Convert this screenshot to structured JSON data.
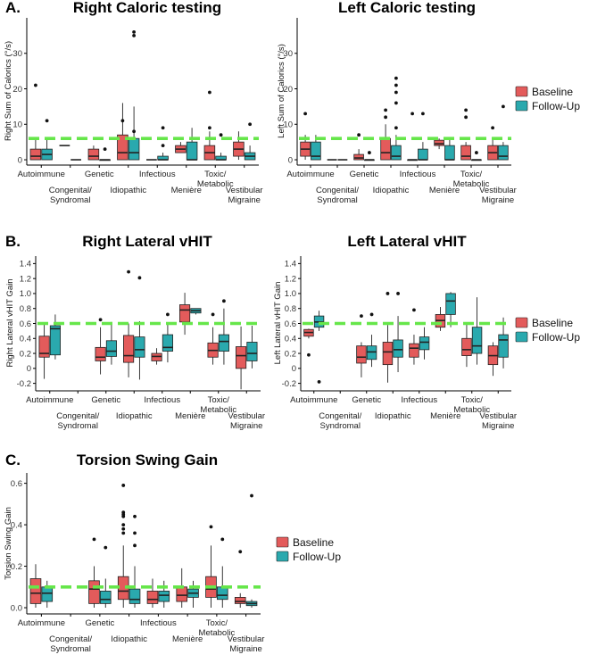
{
  "colors": {
    "baseline": "#e35b5b",
    "followup": "#2aa9ae",
    "reference": "#66e64a",
    "axis": "#000000",
    "whisker": "#222222"
  },
  "legend": {
    "baseline": "Baseline",
    "followup": "Follow-Up"
  },
  "categories": [
    "Autoimmune",
    "Congenital/\nSyndromal",
    "Genetic",
    "Idiopathic",
    "Infectious",
    "Menière",
    "Toxic/\nMetabolic",
    "Vestibular\nMigraine"
  ],
  "panels": [
    {
      "letter": "A.",
      "title": "Right Caloric testing"
    },
    {
      "letter": "",
      "title": "Left Caloric testing"
    },
    {
      "letter": "B.",
      "title": "Right Lateral vHIT"
    },
    {
      "letter": "",
      "title": "Left Lateral vHIT"
    },
    {
      "letter": "C.",
      "title": "Torsion Swing Gain"
    }
  ],
  "chart_data": [
    {
      "type": "box",
      "title": "Right Caloric testing",
      "ylabel": "Right Sum of Calorics (°/s)",
      "ylim": [
        -1.5,
        40
      ],
      "yticks": [
        0,
        10,
        20,
        30
      ],
      "reference_line": 6,
      "series": [
        {
          "name": "Baseline",
          "boxes": [
            {
              "q1": 0,
              "med": 1,
              "q3": 3,
              "lo": 0,
              "hi": 6,
              "out": [
                21
              ]
            },
            {
              "med": 4
            },
            {
              "q1": 0,
              "med": 1,
              "q3": 3,
              "lo": 0,
              "hi": 4
            },
            {
              "q1": 0,
              "med": 2,
              "q3": 7,
              "lo": 0,
              "hi": 16,
              "out": [
                11
              ]
            },
            {
              "med": 0
            },
            {
              "q1": 2,
              "med": 3,
              "q3": 4,
              "lo": 2,
              "hi": 5
            },
            {
              "q1": 0,
              "med": 2,
              "q3": 4,
              "lo": 0,
              "hi": 8,
              "out": [
                19,
                9
              ]
            },
            {
              "q1": 1,
              "med": 3,
              "q3": 5,
              "lo": 0,
              "hi": 8
            }
          ]
        },
        {
          "name": "Follow-Up",
          "boxes": [
            {
              "q1": 0,
              "med": 1.5,
              "q3": 3,
              "lo": 0,
              "hi": 6,
              "out": [
                11
              ]
            },
            {
              "med": 0
            },
            {
              "q1": 0,
              "med": 0,
              "q3": 0,
              "lo": 0,
              "hi": 0,
              "out": [
                3
              ]
            },
            {
              "q1": 0,
              "med": 2,
              "q3": 6,
              "lo": 0,
              "hi": 15,
              "out": [
                36,
                35,
                8
              ]
            },
            {
              "q1": 0,
              "med": 0,
              "q3": 1,
              "lo": 0,
              "hi": 2,
              "out": [
                4,
                9
              ]
            },
            {
              "q1": 0,
              "med": 0,
              "q3": 5,
              "lo": 0,
              "hi": 9
            },
            {
              "q1": 0,
              "med": 0,
              "q3": 1,
              "lo": 0,
              "hi": 2,
              "out": [
                7
              ]
            },
            {
              "q1": 0,
              "med": 1,
              "q3": 2,
              "lo": 0,
              "hi": 4,
              "out": [
                10
              ]
            }
          ]
        }
      ]
    },
    {
      "type": "box",
      "title": "Left Caloric testing",
      "ylabel": "Left Sum of Calorics (°/s)",
      "ylim": [
        -1.5,
        40
      ],
      "yticks": [
        0,
        10,
        20,
        30
      ],
      "reference_line": 6,
      "series": [
        {
          "name": "Baseline",
          "boxes": [
            {
              "q1": 1,
              "med": 3,
              "q3": 5,
              "lo": 0,
              "hi": 7,
              "out": [
                13
              ]
            },
            {
              "med": 0
            },
            {
              "q1": 0,
              "med": 0.5,
              "q3": 1.5,
              "lo": 0,
              "hi": 3,
              "out": [
                7
              ]
            },
            {
              "q1": 0,
              "med": 2,
              "q3": 6,
              "lo": 0,
              "hi": 10,
              "out": [
                14,
                12
              ]
            },
            {
              "q1": 0,
              "med": 0,
              "q3": 0,
              "lo": 0,
              "hi": 0,
              "out": [
                13
              ]
            },
            {
              "q1": 4,
              "med": 4.5,
              "q3": 5.5,
              "lo": 3,
              "hi": 6
            },
            {
              "q1": 0,
              "med": 1,
              "q3": 4,
              "lo": 0,
              "hi": 5,
              "out": [
                14,
                12
              ]
            },
            {
              "q1": 0,
              "med": 2,
              "q3": 4,
              "lo": 0,
              "hi": 6,
              "out": [
                9
              ]
            }
          ]
        },
        {
          "name": "Follow-Up",
          "boxes": [
            {
              "q1": 0,
              "med": 1,
              "q3": 5,
              "lo": 0,
              "hi": 7
            },
            {
              "med": 0
            },
            {
              "q1": 0,
              "med": 0,
              "q3": 0,
              "lo": 0,
              "hi": 0,
              "out": [
                2
              ]
            },
            {
              "q1": 0,
              "med": 1,
              "q3": 4,
              "lo": 0,
              "hi": 7,
              "out": [
                23,
                21,
                19,
                16,
                9
              ]
            },
            {
              "q1": 0,
              "med": 0,
              "q3": 3,
              "lo": 0,
              "hi": 5,
              "out": [
                13
              ]
            },
            {
              "q1": 0,
              "med": 0,
              "q3": 4,
              "lo": 0,
              "hi": 6
            },
            {
              "q1": 0,
              "med": 0,
              "q3": 0,
              "lo": 0,
              "hi": 0,
              "out": [
                2
              ]
            },
            {
              "q1": 0,
              "med": 1,
              "q3": 4,
              "lo": 0,
              "hi": 5,
              "out": [
                15
              ]
            }
          ]
        }
      ]
    },
    {
      "type": "box",
      "title": "Right Lateral vHIT",
      "ylabel": "Right Lateral vHIT Gain",
      "ylim": [
        -0.3,
        1.5
      ],
      "yticks": [
        -0.2,
        0,
        0.2,
        0.4,
        0.6,
        0.8,
        1,
        1.2,
        1.4
      ],
      "ytick_labels": [
        "-0.2",
        "0",
        "0.2",
        "0.4",
        "0.6",
        "0.8",
        "1.0",
        "1.2",
        "1.4"
      ],
      "reference_line": 0.6,
      "series": [
        {
          "name": "Baseline",
          "boxes": [
            {
              "q1": 0.15,
              "med": 0.2,
              "q3": 0.43,
              "lo": -0.14,
              "hi": 0.6
            },
            null,
            {
              "q1": 0.1,
              "med": 0.15,
              "q3": 0.28,
              "lo": -0.08,
              "hi": 0.55,
              "out": [
                0.65
              ]
            },
            {
              "q1": 0.08,
              "med": 0.17,
              "q3": 0.44,
              "lo": -0.12,
              "hi": 0.6,
              "out": [
                1.29
              ]
            },
            {
              "q1": 0.1,
              "med": 0.16,
              "q3": 0.2,
              "lo": 0.05,
              "hi": 0.27
            },
            {
              "q1": 0.62,
              "med": 0.78,
              "q3": 0.85,
              "lo": 0.45,
              "hi": 1.01
            },
            {
              "q1": 0.15,
              "med": 0.24,
              "q3": 0.34,
              "lo": 0.05,
              "hi": 0.55,
              "out": [
                0.72
              ]
            },
            {
              "q1": 0.0,
              "med": 0.17,
              "q3": 0.29,
              "lo": -0.28,
              "hi": 0.56
            }
          ]
        },
        {
          "name": "Follow-Up",
          "boxes": [
            {
              "q1": 0.18,
              "med": 0.53,
              "q3": 0.57,
              "lo": 0.12,
              "hi": 0.72
            },
            null,
            {
              "q1": 0.16,
              "med": 0.23,
              "q3": 0.37,
              "lo": 0.05,
              "hi": 0.62
            },
            {
              "q1": 0.15,
              "med": 0.25,
              "q3": 0.42,
              "lo": -0.15,
              "hi": 0.63,
              "out": [
                1.21
              ]
            },
            {
              "q1": 0.23,
              "med": 0.28,
              "q3": 0.45,
              "lo": 0.08,
              "hi": 0.6,
              "out": [
                0.72
              ]
            },
            {
              "q1": 0.74,
              "med": 0.77,
              "q3": 0.8,
              "lo": 0.72,
              "hi": 0.8
            },
            {
              "q1": 0.23,
              "med": 0.36,
              "q3": 0.45,
              "lo": 0.05,
              "hi": 0.8,
              "out": [
                0.9
              ]
            },
            {
              "q1": 0.1,
              "med": 0.2,
              "q3": 0.35,
              "lo": 0.0,
              "hi": 0.57
            }
          ]
        }
      ]
    },
    {
      "type": "box",
      "title": "Left Lateral vHIT",
      "ylabel": "Left Lateral vHIT Gain",
      "ylim": [
        -0.3,
        1.5
      ],
      "yticks": [
        -0.2,
        0,
        0.2,
        0.4,
        0.6,
        0.8,
        1,
        1.2,
        1.4
      ],
      "ytick_labels": [
        "-0.2",
        "0",
        "0.2",
        "0.4",
        "0.6",
        "0.8",
        "1.0",
        "1.2",
        "1.4"
      ],
      "reference_line": 0.6,
      "series": [
        {
          "name": "Baseline",
          "boxes": [
            {
              "q1": 0.43,
              "med": 0.48,
              "q3": 0.52,
              "lo": 0.4,
              "hi": 0.53,
              "out": [
                0.18
              ]
            },
            null,
            {
              "q1": 0.07,
              "med": 0.15,
              "q3": 0.3,
              "lo": -0.12,
              "hi": 0.35,
              "out": [
                0.7
              ]
            },
            {
              "q1": 0.05,
              "med": 0.22,
              "q3": 0.35,
              "lo": -0.19,
              "hi": 0.58,
              "out": [
                1.0
              ]
            },
            {
              "q1": 0.15,
              "med": 0.27,
              "q3": 0.33,
              "lo": 0.05,
              "hi": 0.45,
              "out": [
                0.78
              ]
            },
            {
              "q1": 0.55,
              "med": 0.64,
              "q3": 0.72,
              "lo": 0.5,
              "hi": 0.82
            },
            {
              "q1": 0.17,
              "med": 0.25,
              "q3": 0.4,
              "lo": 0.02,
              "hi": 0.6
            },
            {
              "q1": 0.05,
              "med": 0.17,
              "q3": 0.3,
              "lo": -0.1,
              "hi": 0.35
            }
          ]
        },
        {
          "name": "Follow-Up",
          "boxes": [
            {
              "q1": 0.55,
              "med": 0.62,
              "q3": 0.7,
              "lo": 0.5,
              "hi": 0.77,
              "out": [
                -0.18
              ]
            },
            null,
            {
              "q1": 0.12,
              "med": 0.22,
              "q3": 0.3,
              "lo": 0.02,
              "hi": 0.45,
              "out": [
                0.72
              ]
            },
            {
              "q1": 0.15,
              "med": 0.25,
              "q3": 0.38,
              "lo": -0.05,
              "hi": 0.7,
              "out": [
                1.0
              ]
            },
            {
              "q1": 0.25,
              "med": 0.35,
              "q3": 0.42,
              "lo": 0.12,
              "hi": 0.55
            },
            {
              "q1": 0.72,
              "med": 0.9,
              "q3": 1.0,
              "lo": 0.55,
              "hi": 1.02
            },
            {
              "q1": 0.2,
              "med": 0.3,
              "q3": 0.55,
              "lo": 0.05,
              "hi": 0.95
            },
            {
              "q1": 0.15,
              "med": 0.38,
              "q3": 0.45,
              "lo": 0.0,
              "hi": 0.68
            }
          ]
        }
      ]
    },
    {
      "type": "box",
      "title": "Torsion Swing Gain",
      "ylabel": "Torsion Swing Gain",
      "ylim": [
        -0.03,
        0.65
      ],
      "yticks": [
        0,
        0.2,
        0.4,
        0.6
      ],
      "ytick_labels": [
        "0.0",
        "0.2",
        "0.4",
        "0.6"
      ],
      "reference_line": 0.1,
      "series": [
        {
          "name": "Baseline",
          "boxes": [
            {
              "q1": 0.02,
              "med": 0.07,
              "q3": 0.14,
              "lo": 0.0,
              "hi": 0.21
            },
            null,
            {
              "q1": 0.02,
              "med": 0.09,
              "q3": 0.13,
              "lo": 0.0,
              "hi": 0.2,
              "out": [
                0.33
              ]
            },
            {
              "q1": 0.04,
              "med": 0.08,
              "q3": 0.15,
              "lo": 0.0,
              "hi": 0.3,
              "out": [
                0.59,
                0.46,
                0.45,
                0.44,
                0.4,
                0.38,
                0.36
              ]
            },
            {
              "q1": 0.02,
              "med": 0.04,
              "q3": 0.08,
              "lo": 0.0,
              "hi": 0.14
            },
            {
              "q1": 0.03,
              "med": 0.06,
              "q3": 0.1,
              "lo": 0.0,
              "hi": 0.19
            },
            {
              "q1": 0.05,
              "med": 0.09,
              "q3": 0.15,
              "lo": 0.0,
              "hi": 0.3,
              "out": [
                0.39
              ]
            },
            {
              "q1": 0.02,
              "med": 0.03,
              "q3": 0.05,
              "lo": 0.0,
              "hi": 0.07,
              "out": [
                0.27
              ]
            }
          ]
        },
        {
          "name": "Follow-Up",
          "boxes": [
            {
              "q1": 0.03,
              "med": 0.07,
              "q3": 0.1,
              "lo": 0.0,
              "hi": 0.13
            },
            null,
            {
              "q1": 0.02,
              "med": 0.04,
              "q3": 0.08,
              "lo": 0.0,
              "hi": 0.14,
              "out": [
                0.29
              ]
            },
            {
              "q1": 0.02,
              "med": 0.04,
              "q3": 0.09,
              "lo": 0.0,
              "hi": 0.2,
              "out": [
                0.44,
                0.36,
                0.3
              ]
            },
            {
              "q1": 0.03,
              "med": 0.06,
              "q3": 0.08,
              "lo": 0.0,
              "hi": 0.13
            },
            {
              "q1": 0.05,
              "med": 0.07,
              "q3": 0.09,
              "lo": 0.0,
              "hi": 0.13
            },
            {
              "q1": 0.04,
              "med": 0.06,
              "q3": 0.1,
              "lo": 0.0,
              "hi": 0.2,
              "out": [
                0.33
              ]
            },
            {
              "q1": 0.01,
              "med": 0.02,
              "q3": 0.03,
              "lo": 0.0,
              "hi": 0.04,
              "out": [
                0.54
              ]
            }
          ]
        }
      ]
    }
  ]
}
